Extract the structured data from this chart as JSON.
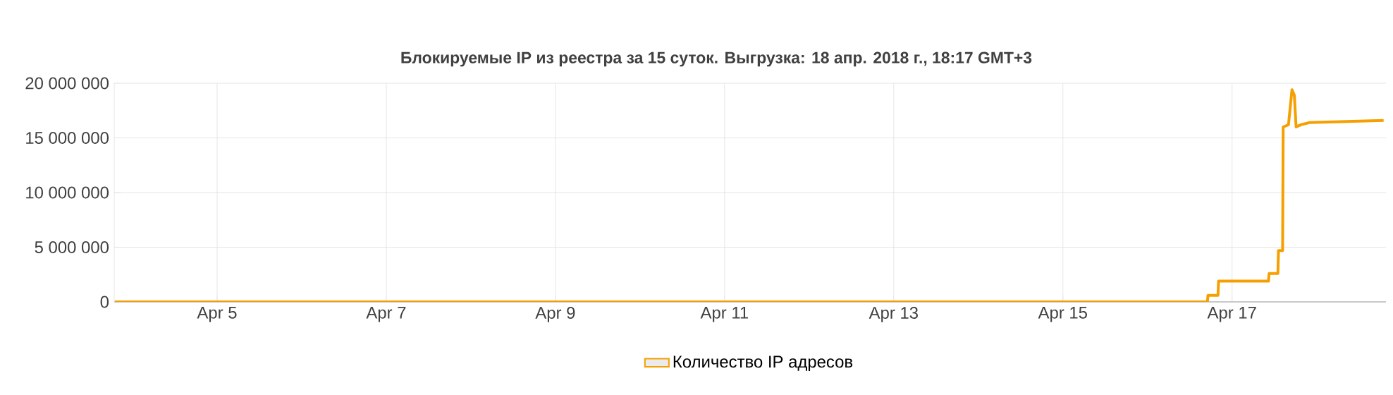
{
  "chart_data": {
    "type": "line",
    "title": "Блокируемые IP из реестра за 15 суток. Выгрузка: 18 апр. 2018 г., 18:17 GMT+3",
    "x": [
      "2018-04-03T19:00",
      "2018-04-08T12:00",
      "2018-04-13T00:00",
      "2018-04-16T17:00",
      "2018-04-16T17:10",
      "2018-04-16T20:00",
      "2018-04-16T20:10",
      "2018-04-17T10:20",
      "2018-04-17T10:30",
      "2018-04-17T13:00",
      "2018-04-17T13:10",
      "2018-04-17T14:20",
      "2018-04-17T14:30",
      "2018-04-17T16:00",
      "2018-04-17T17:00",
      "2018-04-17T17:40",
      "2018-04-17T18:10",
      "2018-04-17T19:30",
      "2018-04-17T22:00",
      "2018-04-18T19:00"
    ],
    "series": [
      {
        "name": "Количество IP адресов",
        "color": "#f5a000",
        "values": [
          0,
          0,
          0,
          0,
          600000,
          600000,
          1900000,
          1900000,
          2600000,
          2600000,
          4700000,
          4700000,
          16000000,
          16200000,
          19400000,
          18900000,
          16000000,
          16200000,
          16400000,
          16600000
        ]
      }
    ],
    "xlim": [
      "2018-04-03T18:48",
      "2018-04-18T19:40"
    ],
    "xticks": [
      {
        "value": "2018-04-05",
        "label": "Apr 5"
      },
      {
        "value": "2018-04-07",
        "label": "Apr 7"
      },
      {
        "value": "2018-04-09",
        "label": "Apr 9"
      },
      {
        "value": "2018-04-11",
        "label": "Apr 11"
      },
      {
        "value": "2018-04-13",
        "label": "Apr 13"
      },
      {
        "value": "2018-04-15",
        "label": "Apr 15"
      },
      {
        "value": "2018-04-17",
        "label": "Apr 17"
      }
    ],
    "ylim": [
      0,
      20000000
    ],
    "yticks": [
      0,
      {
        "value": 5000000,
        "label": "5 000 000"
      },
      {
        "value": 10000000,
        "label": "10 000 000"
      },
      {
        "value": 15000000,
        "label": "15 000 000"
      },
      {
        "value": 20000000,
        "label": "20 000 000"
      }
    ],
    "grid": true,
    "legend": "bottom"
  }
}
